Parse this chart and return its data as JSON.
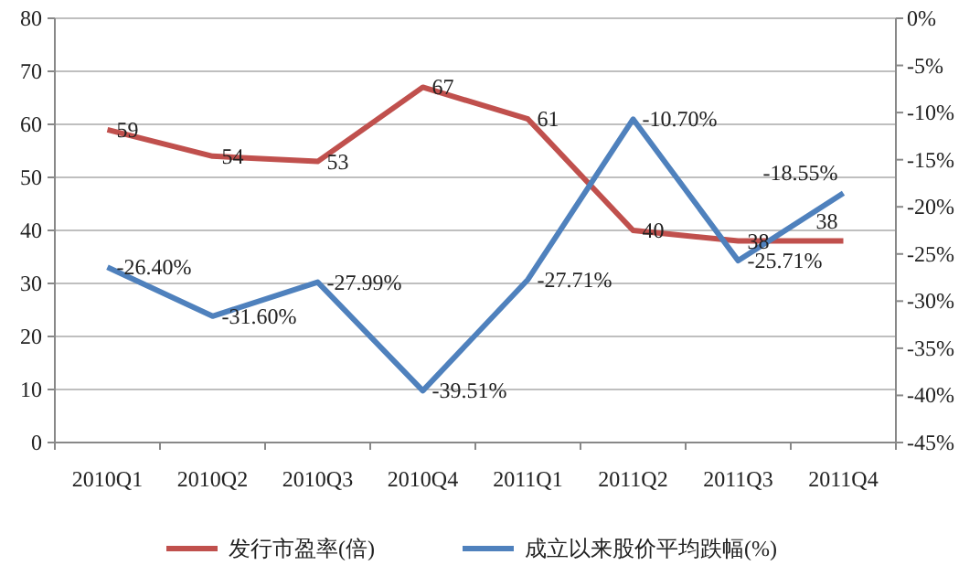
{
  "chart_data": {
    "type": "line",
    "categories": [
      "2010Q1",
      "2010Q2",
      "2010Q3",
      "2010Q4",
      "2011Q1",
      "2011Q2",
      "2011Q3",
      "2011Q4"
    ],
    "series": [
      {
        "name": "发行市盈率(倍)",
        "color": "#c0504d",
        "values": [
          59,
          54,
          53,
          67,
          61,
          40,
          38,
          38
        ],
        "value_labels": [
          "59",
          "54",
          "53",
          "67",
          "61",
          "40",
          "38",
          "38"
        ]
      },
      {
        "name": "成立以来股价平均跌幅(%)",
        "color": "#4f81bd",
        "axis": "y2",
        "values": [
          -26.4,
          -31.6,
          -27.99,
          -39.51,
          -27.71,
          -10.7,
          -25.71,
          -18.55
        ],
        "value_labels": [
          "-26.40%",
          "-31.60%",
          "-27.99%",
          "-39.51%",
          "-27.71%",
          "-10.70%",
          "-25.71%",
          "-18.55%"
        ]
      }
    ],
    "ylim": [
      0,
      80
    ],
    "yticks": [
      0,
      10,
      20,
      30,
      40,
      50,
      60,
      70,
      80
    ],
    "y2lim": [
      -45,
      0
    ],
    "y2ticks": [
      {
        "value": 0,
        "label": "0%"
      },
      {
        "value": -5,
        "label": "-5%"
      },
      {
        "value": -10,
        "label": "-10%"
      },
      {
        "value": -15,
        "label": "-15%"
      },
      {
        "value": -20,
        "label": "-20%"
      },
      {
        "value": -25,
        "label": "-25%"
      },
      {
        "value": -30,
        "label": "-30%"
      },
      {
        "value": -35,
        "label": "-35%"
      },
      {
        "value": -40,
        "label": "-40%"
      },
      {
        "value": -45,
        "label": "-45%"
      }
    ],
    "grid": "y",
    "legend": "bottom",
    "marker": "none",
    "line_style": "solid"
  }
}
